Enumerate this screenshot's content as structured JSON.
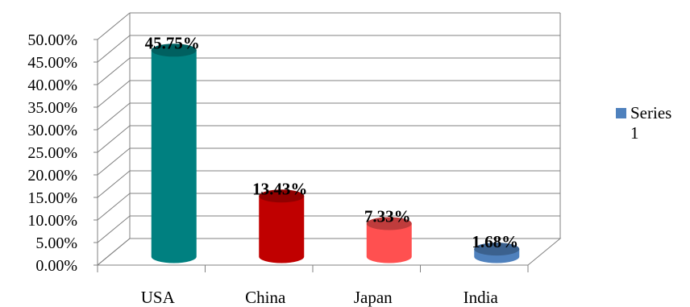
{
  "chart_data": {
    "type": "bar",
    "style": "3d-cylinder",
    "categories": [
      "USA",
      "China",
      "Japan",
      "India"
    ],
    "series": [
      {
        "name": "Series 1",
        "values": [
          45.75,
          13.43,
          7.33,
          1.68
        ],
        "data_labels": [
          "45.75%",
          "13.43%",
          "7.33%",
          "1.68%"
        ]
      }
    ],
    "bar_colors": [
      "#008080",
      "#C00000",
      "#FF5050",
      "#4F81BD"
    ],
    "yticks": [
      "0.00%",
      "5.00%",
      "10.00%",
      "15.00%",
      "20.00%",
      "25.00%",
      "30.00%",
      "35.00%",
      "40.00%",
      "45.00%",
      "50.00%"
    ],
    "ylim": [
      0,
      50
    ],
    "grid": true,
    "legend_position": "right",
    "legend_color": "#4F81BD",
    "grid_color": "#808080"
  }
}
